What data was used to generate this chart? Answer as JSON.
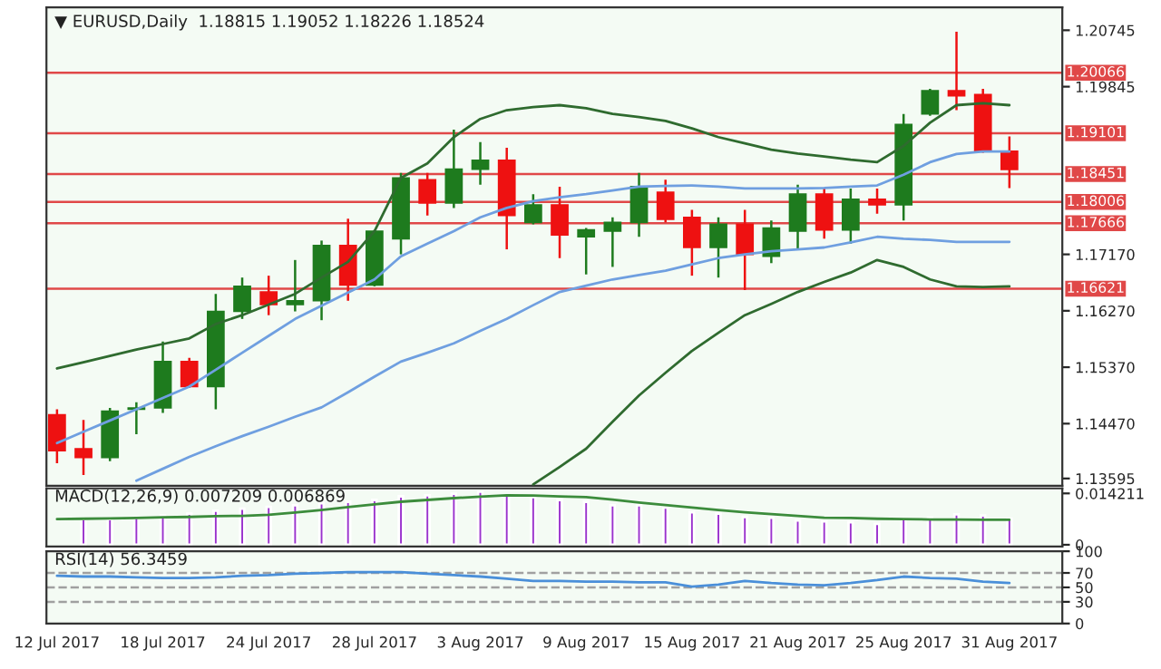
{
  "chart_data": [
    {
      "type": "candlestick",
      "title": "▼ EURUSD,Daily  1.18815 1.19052 1.18226 1.18524",
      "ohlc": [
        [
          1.1461,
          1.147,
          1.1384,
          1.1404
        ],
        [
          1.1407,
          1.1453,
          1.1365,
          1.1393
        ],
        [
          1.1393,
          1.1472,
          1.1387,
          1.1467
        ],
        [
          1.147,
          1.1481,
          1.143,
          1.1472
        ],
        [
          1.1472,
          1.1578,
          1.1464,
          1.1546
        ],
        [
          1.1546,
          1.1552,
          1.1504,
          1.1506
        ],
        [
          1.1506,
          1.1654,
          1.147,
          1.1626
        ],
        [
          1.1626,
          1.168,
          1.1614,
          1.1666
        ],
        [
          1.1657,
          1.1683,
          1.162,
          1.1637
        ],
        [
          1.1637,
          1.1708,
          1.1626,
          1.1643
        ],
        [
          1.1643,
          1.1739,
          1.1612,
          1.1731
        ],
        [
          1.1731,
          1.1774,
          1.1643,
          1.1668
        ],
        [
          1.1668,
          1.1756,
          1.1666,
          1.1754
        ],
        [
          1.1742,
          1.1847,
          1.1717,
          1.1839
        ],
        [
          1.1836,
          1.1847,
          1.1779,
          1.1799
        ],
        [
          1.1799,
          1.1916,
          1.1791,
          1.1853
        ],
        [
          1.1853,
          1.1896,
          1.1828,
          1.1867
        ],
        [
          1.1867,
          1.1887,
          1.1725,
          1.1779
        ],
        [
          1.1768,
          1.1813,
          1.1765,
          1.1796
        ],
        [
          1.1796,
          1.1825,
          1.1711,
          1.1748
        ],
        [
          1.1745,
          1.1759,
          1.1685,
          1.1756
        ],
        [
          1.1754,
          1.1776,
          1.1697,
          1.1768
        ],
        [
          1.1768,
          1.1847,
          1.1745,
          1.1825
        ],
        [
          1.1816,
          1.1836,
          1.1768,
          1.1773
        ],
        [
          1.1776,
          1.1788,
          1.1683,
          1.1728
        ],
        [
          1.1728,
          1.1776,
          1.168,
          1.1765
        ],
        [
          1.1765,
          1.1788,
          1.166,
          1.1717
        ],
        [
          1.1714,
          1.1771,
          1.1703,
          1.1759
        ],
        [
          1.1754,
          1.1828,
          1.1725,
          1.1813
        ],
        [
          1.1813,
          1.1822,
          1.1742,
          1.1756
        ],
        [
          1.1756,
          1.1822,
          1.1734,
          1.1805
        ],
        [
          1.1805,
          1.1822,
          1.1782,
          1.1796
        ],
        [
          1.1796,
          1.1941,
          1.1771,
          1.1924
        ],
        [
          1.1941,
          1.1981,
          1.1938,
          1.1978
        ],
        [
          1.1978,
          1.2072,
          1.1947,
          1.197
        ],
        [
          1.1972,
          1.1981,
          1.1879,
          1.1881
        ],
        [
          1.18815,
          1.19052,
          1.18226,
          1.18524
        ]
      ],
      "colors": [
        "#ee1111",
        "#ee1111",
        "#1e7b1e",
        "#1e7b1e",
        "#1e7b1e",
        "#ee1111",
        "#1e7b1e",
        "#1e7b1e",
        "#ee1111",
        "#1e7b1e",
        "#1e7b1e",
        "#ee1111",
        "#1e7b1e",
        "#1e7b1e",
        "#ee1111",
        "#1e7b1e",
        "#1e7b1e",
        "#ee1111",
        "#1e7b1e",
        "#ee1111",
        "#1e7b1e",
        "#1e7b1e",
        "#1e7b1e",
        "#ee1111",
        "#ee1111",
        "#1e7b1e",
        "#ee1111",
        "#1e7b1e",
        "#1e7b1e",
        "#ee1111",
        "#1e7b1e",
        "#ee1111",
        "#1e7b1e",
        "#1e7b1e",
        "#ee1111",
        "#ee1111",
        "#ee1111"
      ],
      "series": [
        {
          "type": "line",
          "color": "#2f6b2f",
          "values": [
            1.1535,
            1.1545,
            1.1555,
            1.1565,
            1.1574,
            1.1583,
            1.1606,
            1.162,
            1.1637,
            1.1654,
            1.168,
            1.1705,
            1.1754,
            1.1839,
            1.1862,
            1.1904,
            1.1933,
            1.1947,
            1.1952,
            1.1955,
            1.195,
            1.1941,
            1.1936,
            1.193,
            1.1918,
            1.1904,
            1.1894,
            1.1884,
            1.1878,
            1.1873,
            1.1868,
            1.1864,
            1.189,
            1.1927,
            1.1955,
            1.1958,
            1.1955
          ]
        },
        {
          "type": "line",
          "color": "#6f9fe0",
          "values": [
            1.1416,
            1.1434,
            1.1452,
            1.147,
            1.1488,
            1.1506,
            1.1533,
            1.156,
            1.1587,
            1.1614,
            1.1635,
            1.1656,
            1.1677,
            1.1714,
            1.1734,
            1.1754,
            1.1776,
            1.1791,
            1.1802,
            1.1808,
            1.1813,
            1.1819,
            1.1825,
            1.1826,
            1.1827,
            1.1825,
            1.1822,
            1.1822,
            1.1822,
            1.1823,
            1.1825,
            1.1827,
            1.1844,
            1.1864,
            1.1877,
            1.1881,
            1.1881
          ]
        },
        {
          "type": "line",
          "color": "#6f9fe0",
          "values": [
            null,
            null,
            null,
            1.1356,
            1.1375,
            1.1394,
            1.1411,
            1.1427,
            1.1442,
            1.1458,
            1.1473,
            1.1497,
            1.1522,
            1.1546,
            1.156,
            1.1575,
            1.1595,
            1.1614,
            1.1636,
            1.1657,
            1.1667,
            1.1677,
            1.1684,
            1.1691,
            1.1701,
            1.1711,
            1.1717,
            1.1722,
            1.1725,
            1.1728,
            1.1736,
            1.1745,
            1.1742,
            1.174,
            1.1737,
            1.1737,
            1.1737
          ]
        },
        {
          "type": "line",
          "color": "#2f6b2f",
          "values": [
            null,
            null,
            null,
            null,
            null,
            null,
            null,
            null,
            null,
            null,
            null,
            null,
            null,
            null,
            null,
            null,
            null,
            null,
            1.135,
            1.1378,
            1.1407,
            1.145,
            1.1492,
            1.1528,
            1.1563,
            1.1592,
            1.162,
            1.1638,
            1.1657,
            1.1673,
            1.1688,
            1.1708,
            1.1697,
            1.1677,
            1.1666,
            1.1665,
            1.1666
          ]
        }
      ],
      "ylim": [
        1.1348,
        1.2111
      ],
      "yticks": [
        {
          "value": 1.13595,
          "label": "1.13595"
        },
        {
          "value": 1.1447,
          "label": "1.14470"
        },
        {
          "value": 1.1537,
          "label": "1.15370"
        },
        {
          "value": 1.1627,
          "label": "1.16270"
        },
        {
          "value": 1.1717,
          "label": "1.17170"
        },
        {
          "value": 1.19845,
          "label": "1.19845"
        },
        {
          "value": 1.20745,
          "label": "1.20745"
        }
      ],
      "ref_lines": [
        {
          "axis": "y",
          "value": 1.20066,
          "label": "1.20066",
          "color": "#e04848"
        },
        {
          "axis": "y",
          "value": 1.19101,
          "label": "1.19101",
          "color": "#e04848"
        },
        {
          "axis": "y",
          "value": 1.18451,
          "label": "1.18451",
          "color": "#e04848"
        },
        {
          "axis": "y",
          "value": 1.18006,
          "label": "1.18006",
          "color": "#e04848"
        },
        {
          "axis": "y",
          "value": 1.17666,
          "label": "1.17666",
          "color": "#e04848"
        },
        {
          "axis": "y",
          "value": 1.16621,
          "label": "1.16621",
          "color": "#e04848"
        }
      ],
      "tick_labels": "y"
    },
    {
      "type": "bar",
      "title": "MACD(12,26,9) 0.007209 0.006869",
      "series": [
        {
          "type": "bar",
          "color": "#9a32cd",
          "values": [
            null,
            0.0071,
            0.0071,
            0.0075,
            0.0081,
            0.0086,
            0.0094,
            0.01,
            0.0105,
            0.0109,
            0.0115,
            0.0119,
            0.0124,
            0.0134,
            0.0137,
            0.0141,
            0.0147,
            0.0137,
            0.0132,
            0.0124,
            0.0119,
            0.0109,
            0.0109,
            0.0103,
            0.009,
            0.0086,
            0.0077,
            0.0075,
            0.0067,
            0.0065,
            0.0062,
            0.0058,
            0.0071,
            0.0075,
            0.0084,
            0.0081,
            0.0072
          ]
        },
        {
          "type": "line",
          "color": "#3c8c3c",
          "values": [
            0.0071,
            0.0072,
            0.0073,
            0.0074,
            0.0076,
            0.0077,
            0.0079,
            0.008,
            0.0083,
            0.0089,
            0.0096,
            0.0104,
            0.0112,
            0.0119,
            0.0124,
            0.0129,
            0.0133,
            0.0137,
            0.0136,
            0.0134,
            0.0132,
            0.0125,
            0.0117,
            0.011,
            0.0103,
            0.0096,
            0.009,
            0.0085,
            0.008,
            0.0075,
            0.0074,
            0.0072,
            0.0071,
            0.007,
            0.007,
            0.0069,
            0.0069
          ]
        }
      ],
      "ylim": [
        -0.0005,
        0.0156
      ],
      "yticks": [
        0,
        0.014211
      ],
      "tick_labels": "y"
    },
    {
      "type": "line",
      "title": "RSI(14) 56.3459",
      "categories": [
        "12 Jul 2017",
        null,
        null,
        null,
        "18 Jul 2017",
        null,
        null,
        null,
        "24 Jul 2017",
        null,
        null,
        null,
        "28 Jul 2017",
        null,
        null,
        null,
        "3 Aug 2017",
        null,
        null,
        null,
        "9 Aug 2017",
        null,
        null,
        null,
        "15 Aug 2017",
        null,
        null,
        null,
        "21 Aug 2017",
        null,
        null,
        null,
        "25 Aug 2017",
        null,
        null,
        null,
        "31 Aug 2017"
      ],
      "series": [
        {
          "type": "line",
          "color": "#4a8fd9",
          "values": [
            66,
            65,
            65,
            64,
            63,
            63,
            64,
            66,
            67,
            69,
            70,
            71,
            71,
            71,
            69,
            67,
            65,
            62,
            59,
            59,
            58,
            58,
            57,
            57,
            51,
            54,
            59,
            56,
            54,
            53,
            56,
            60,
            65,
            63,
            62,
            58,
            56
          ]
        }
      ],
      "ylim": [
        0,
        100
      ],
      "yticks": [
        0,
        30,
        50,
        70,
        100
      ],
      "ref_lines": [
        {
          "axis": "y",
          "value": 70,
          "color": "#a0a0a0",
          "line_style": "dashed"
        },
        {
          "axis": "y",
          "value": 50,
          "color": "#a0a0a0",
          "line_style": "dashed"
        },
        {
          "axis": "y",
          "value": 30,
          "color": "#a0a0a0",
          "line_style": "dashed"
        }
      ]
    }
  ]
}
